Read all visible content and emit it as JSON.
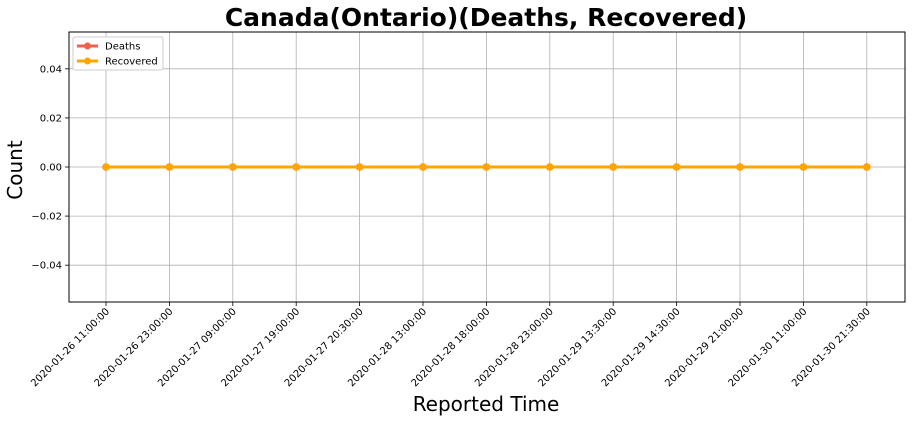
{
  "chart_data": {
    "type": "line",
    "title": "Canada(Ontario)(Deaths, Recovered)",
    "xlabel": "Reported Time",
    "ylabel": "Count",
    "ylim": [
      -0.055,
      0.055
    ],
    "yticks": [
      -0.04,
      -0.02,
      0.0,
      0.02,
      0.04
    ],
    "ytick_labels": [
      "−0.04",
      "−0.02",
      "0.00",
      "0.02",
      "0.04"
    ],
    "grid": true,
    "legend_position": "top-left",
    "categories": [
      "2020-01-26 11:00:00",
      "2020-01-26 23:00:00",
      "2020-01-27 09:00:00",
      "2020-01-27 19:00:00",
      "2020-01-27 20:30:00",
      "2020-01-28 13:00:00",
      "2020-01-28 18:00:00",
      "2020-01-28 23:00:00",
      "2020-01-29 13:30:00",
      "2020-01-29 14:30:00",
      "2020-01-29 21:00:00",
      "2020-01-30 11:00:00",
      "2020-01-30 21:30:00"
    ],
    "series": [
      {
        "name": "Deaths",
        "color": "#f0614a",
        "values": [
          0,
          0,
          0,
          0,
          0,
          0,
          0,
          0,
          0,
          0,
          0,
          0,
          0
        ]
      },
      {
        "name": "Recovered",
        "color": "#ffa500",
        "values": [
          0,
          0,
          0,
          0,
          0,
          0,
          0,
          0,
          0,
          0,
          0,
          0,
          0
        ]
      }
    ]
  }
}
